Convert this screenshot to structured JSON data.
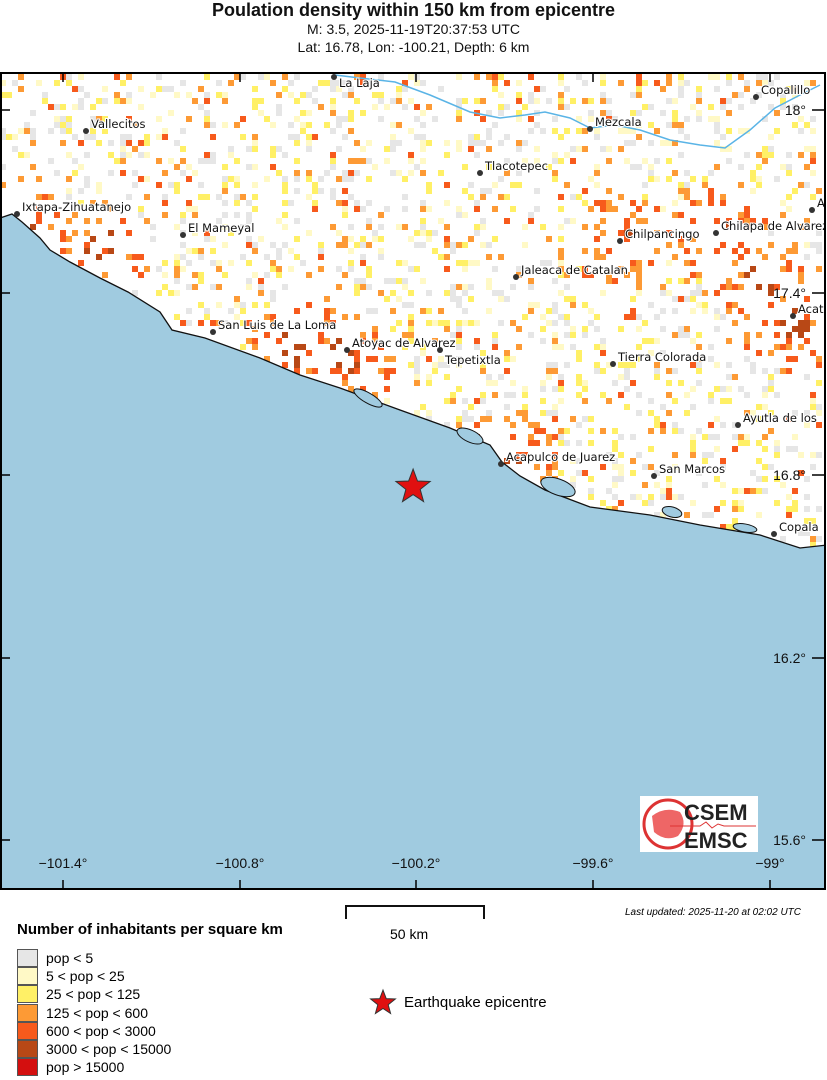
{
  "header": {
    "title": "Poulation density within 150 km from epicentre",
    "subtitle1": "M: 3.5,  2025-11-19T20:37:53 UTC",
    "subtitle2": "Lat: 16.78, Lon: -100.21, Depth: 6 km"
  },
  "map": {
    "lon_ticks": [
      "−101.4°",
      "−100.8°",
      "−100.2°",
      "−99.6°",
      "−99°"
    ],
    "lat_ticks": [
      "18°",
      "17.4°",
      "16.8°",
      "16.2°",
      "15.6°"
    ],
    "cities": [
      "La Laja",
      "Copalillo",
      "Vallecitos",
      "Mezcala",
      "Tlacotepec",
      "Ixtapa-Zihuatanejo",
      "El Mameyal",
      "Chilpancingo",
      "Chilapa de Alvarez",
      "A",
      "Jaleaca de Catalan",
      "Acat",
      "San Luis de La Loma",
      "Atoyac de Alvarez",
      "Tepetixtla",
      "Tierra Colorada",
      "Ayutla de los",
      "Acapulco de Juarez",
      "San Marcos",
      "Copala"
    ],
    "epicentre": {
      "lat": 16.78,
      "lon": -100.21
    },
    "colors": {
      "ocean": "#a0cbe0",
      "river": "#5ab4e6",
      "star": "#e01010"
    },
    "logo": {
      "top": "CSEM",
      "bottom": "EMSC"
    }
  },
  "legend": {
    "title": "Number of inhabitants per square km",
    "items": [
      {
        "label": "pop < 5",
        "color": "#e6e6e6"
      },
      {
        "label": "5 < pop < 25",
        "color": "#fff9c6"
      },
      {
        "label": "25 < pop < 125",
        "color": "#fff066"
      },
      {
        "label": "125 < pop < 600",
        "color": "#fd9a35"
      },
      {
        "label": "600 < pop < 3000",
        "color": "#f75a1c"
      },
      {
        "label": "3000 < pop < 15000",
        "color": "#b84816"
      },
      {
        "label": "pop > 15000",
        "color": "#d40f0f"
      }
    ],
    "scale_label": "50 km",
    "epicentre_label": "Earthquake epicentre",
    "updated": "Last updated: 2025-11-20 at 02:02 UTC"
  }
}
